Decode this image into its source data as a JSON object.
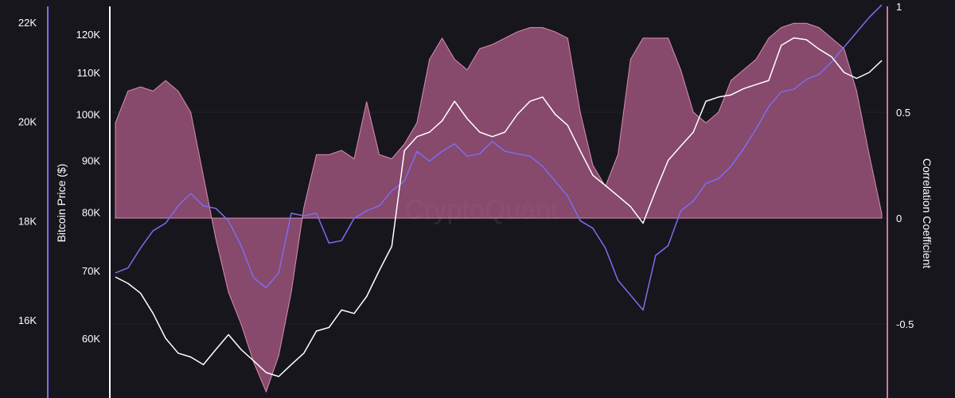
{
  "chart_data": {
    "type": "line",
    "title": "",
    "watermark": "CryptoQuant",
    "grid": true,
    "axes": {
      "outer_left": {
        "label": "",
        "color": "#7b6ef0",
        "min": 15000,
        "max": 22500,
        "ticks": [
          {
            "value": 22000,
            "label": "22K"
          },
          {
            "value": 20000,
            "label": "20K"
          },
          {
            "value": 18000,
            "label": "18K"
          },
          {
            "value": 16000,
            "label": "16K"
          }
        ]
      },
      "inner_left": {
        "label": "Bitcoin Price ($)",
        "color": "#ffffff",
        "scale": "log",
        "min": 50000,
        "max": 130000,
        "ticks": [
          {
            "value": 120000,
            "label": "120K"
          },
          {
            "value": 110000,
            "label": "110K"
          },
          {
            "value": 100000,
            "label": "100K"
          },
          {
            "value": 90000,
            "label": "90K"
          },
          {
            "value": 80000,
            "label": "80K"
          },
          {
            "value": 70000,
            "label": "70K"
          },
          {
            "value": 60000,
            "label": "60K"
          }
        ]
      },
      "right": {
        "label": "Correlation Coefficient",
        "color": "#c97a9f",
        "min": -0.85,
        "max": 1,
        "ticks": [
          {
            "value": 1,
            "label": "1"
          },
          {
            "value": 0.5,
            "label": "0.5"
          },
          {
            "value": 0,
            "label": "0"
          },
          {
            "value": -0.5,
            "label": "-0.5"
          }
        ]
      }
    },
    "series": [
      {
        "type": "area",
        "axis": "right",
        "color": "#b35d8c",
        "values": [
          0.45,
          0.6,
          0.62,
          0.6,
          0.65,
          0.6,
          0.5,
          0.2,
          -0.1,
          -0.35,
          -0.5,
          -0.68,
          -0.82,
          -0.65,
          -0.35,
          0.05,
          0.3,
          0.3,
          0.32,
          0.28,
          0.55,
          0.3,
          0.28,
          0.35,
          0.45,
          0.75,
          0.85,
          0.75,
          0.7,
          0.8,
          0.82,
          0.85,
          0.88,
          0.9,
          0.9,
          0.88,
          0.85,
          0.5,
          0.25,
          0.15,
          0.3,
          0.75,
          0.85,
          0.85,
          0.85,
          0.7,
          0.5,
          0.45,
          0.5,
          0.65,
          0.7,
          0.75,
          0.85,
          0.9,
          0.92,
          0.92,
          0.9,
          0.85,
          0.8,
          0.6,
          0.3,
          0.02
        ]
      },
      {
        "type": "line",
        "axis": "inner_left",
        "color": "#ffffff",
        "values": [
          69000,
          68000,
          66500,
          63500,
          60000,
          58000,
          57500,
          56500,
          58500,
          60500,
          58500,
          57000,
          55500,
          55000,
          56500,
          58000,
          61000,
          61500,
          64000,
          63500,
          66000,
          70000,
          74000,
          92000,
          95000,
          96000,
          98500,
          103000,
          99000,
          96000,
          95000,
          96000,
          100000,
          103000,
          104000,
          100000,
          97500,
          92000,
          87000,
          85000,
          83000,
          81000,
          78000,
          84000,
          90000,
          93000,
          96000,
          103000,
          104000,
          104500,
          106000,
          107000,
          108000,
          117000,
          119000,
          118500,
          116000,
          114000,
          110000,
          108500,
          110000,
          113000
        ]
      },
      {
        "type": "line",
        "axis": "outer_left",
        "color": "#7b6ef0",
        "values": [
          16950,
          17050,
          17450,
          17800,
          17950,
          18300,
          18550,
          18300,
          18250,
          18000,
          17500,
          16850,
          16650,
          16950,
          18150,
          18100,
          18150,
          17550,
          17600,
          18050,
          18200,
          18300,
          18600,
          18800,
          19400,
          19200,
          19400,
          19550,
          19300,
          19350,
          19600,
          19400,
          19350,
          19300,
          19100,
          18800,
          18500,
          18000,
          17850,
          17450,
          16800,
          16500,
          16200,
          17300,
          17500,
          18200,
          18400,
          18750,
          18850,
          19100,
          19450,
          19850,
          20300,
          20600,
          20650,
          20850,
          20950,
          21200,
          21500,
          21800,
          22100,
          22350
        ]
      }
    ]
  }
}
